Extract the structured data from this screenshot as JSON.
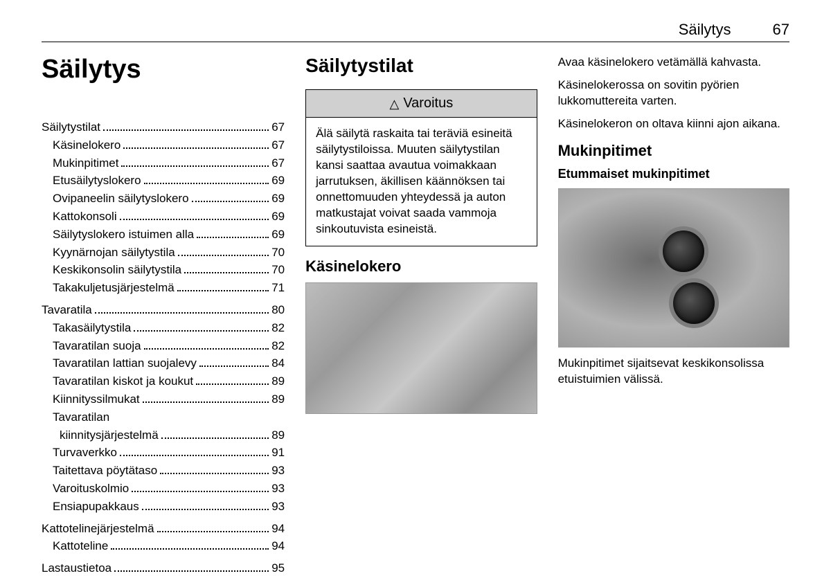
{
  "header": {
    "title": "Säilytys",
    "page": "67"
  },
  "col1": {
    "title": "Säilytys",
    "toc": [
      {
        "label": "Säilytystilat",
        "page": "67",
        "indent": 0
      },
      {
        "label": "Käsinelokero",
        "page": "67",
        "indent": 1
      },
      {
        "label": "Mukinpitimet",
        "page": "67",
        "indent": 1
      },
      {
        "label": "Etusäilytyslokero",
        "page": "69",
        "indent": 1
      },
      {
        "label": "Ovipaneelin säilytyslokero",
        "page": "69",
        "indent": 1
      },
      {
        "label": "Kattokonsoli",
        "page": "69",
        "indent": 1
      },
      {
        "label": "Säilytyslokero istuimen alla",
        "page": "69",
        "indent": 1
      },
      {
        "label": "Kyynärnojan säilytystila",
        "page": "70",
        "indent": 1
      },
      {
        "label": "Keskikonsolin säilytystila",
        "page": "70",
        "indent": 1
      },
      {
        "label": "Takakuljetusjärjestelmä",
        "page": "71",
        "indent": 1
      },
      {
        "label": "Tavaratila",
        "page": "80",
        "indent": 0,
        "group": true
      },
      {
        "label": "Takasäilytystila",
        "page": "82",
        "indent": 1
      },
      {
        "label": "Tavaratilan suoja",
        "page": "82",
        "indent": 1
      },
      {
        "label": "Tavaratilan lattian suojalevy",
        "page": "84",
        "indent": 1
      },
      {
        "label": "Tavaratilan kiskot ja koukut",
        "page": "89",
        "indent": 1
      },
      {
        "label": "Kiinnityssilmukat",
        "page": "89",
        "indent": 1
      },
      {
        "label": "Tavaratilan",
        "indent": 1,
        "nopage": true
      },
      {
        "label": "kiinnitysjärjestelmä",
        "page": "89",
        "indent": 2
      },
      {
        "label": "Turvaverkko",
        "page": "91",
        "indent": 1
      },
      {
        "label": "Taitettava pöytätaso",
        "page": "93",
        "indent": 1
      },
      {
        "label": "Varoituskolmio",
        "page": "93",
        "indent": 1
      },
      {
        "label": "Ensiapupakkaus",
        "page": "93",
        "indent": 1
      },
      {
        "label": "Kattotelinejärjestelmä",
        "page": "94",
        "indent": 0,
        "group": true
      },
      {
        "label": "Kattoteline",
        "page": "94",
        "indent": 1
      },
      {
        "label": "Lastaustietoa",
        "page": "95",
        "indent": 0,
        "group": true
      }
    ]
  },
  "col2": {
    "title": "Säilytystilat",
    "warning_title": "Varoitus",
    "warning_body": "Älä säilytä raskaita tai teräviä esineitä säilytystiloissa. Muuten säilytystilan kansi saattaa avautua voimakkaan jarrutuksen, äkillisen käännöksen tai onnettomuuden yhteydessä ja auton matkustajat voivat saada vammoja sinkoutuvista esineistä.",
    "subsection": "Käsinelokero"
  },
  "col3": {
    "p1": "Avaa käsinelokero vetämällä kahvasta.",
    "p2": "Käsinelokerossa on sovitin pyörien lukkomuttereita varten.",
    "p3": "Käsinelokeron on oltava kiinni ajon aikana.",
    "subsection": "Mukinpitimet",
    "subsub": "Etummaiset mukinpitimet",
    "p4": "Mukinpitimet sijaitsevat keskikonsolissa etuistuimien välissä."
  }
}
